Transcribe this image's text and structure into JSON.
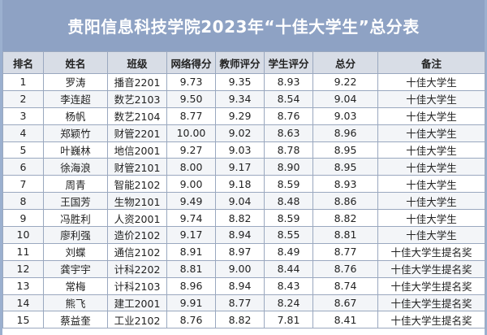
{
  "title": "贵阳信息科技学院2023年“十佳大学生”总分表",
  "columns": [
    "排名",
    "姓名",
    "班级",
    "网络得分",
    "教师评分",
    "学生评分",
    "总分",
    "备注"
  ],
  "rows": [
    [
      "1",
      "罗涛",
      "播音2201",
      "9.73",
      "9.35",
      "8.93",
      "9.22",
      "十佳大学生"
    ],
    [
      "2",
      "李连超",
      "数艺2103",
      "9.50",
      "9.34",
      "8.54",
      "9.04",
      "十佳大学生"
    ],
    [
      "3",
      "杨帆",
      "数艺2104",
      "8.77",
      "9.29",
      "8.76",
      "9.03",
      "十佳大学生"
    ],
    [
      "4",
      "郑颖竹",
      "财管2201",
      "10.00",
      "9.02",
      "8.63",
      "8.96",
      "十佳大学生"
    ],
    [
      "5",
      "叶巍林",
      "地信2001",
      "9.27",
      "9.03",
      "8.78",
      "8.95",
      "十佳大学生"
    ],
    [
      "6",
      "徐海浪",
      "财管2101",
      "8.00",
      "9.17",
      "8.90",
      "8.95",
      "十佳大学生"
    ],
    [
      "7",
      "周青",
      "智能2102",
      "9.00",
      "9.18",
      "8.59",
      "8.93",
      "十佳大学生"
    ],
    [
      "8",
      "王国芳",
      "生物2101",
      "9.49",
      "9.04",
      "8.48",
      "8.86",
      "十佳大学生"
    ],
    [
      "9",
      "冯胜利",
      "人资2001",
      "9.74",
      "8.82",
      "8.59",
      "8.82",
      "十佳大学生"
    ],
    [
      "10",
      "廖利强",
      "造价2102",
      "9.17",
      "8.94",
      "8.55",
      "8.81",
      "十佳大学生"
    ],
    [
      "11",
      "刘蝶",
      "通信2102",
      "8.91",
      "8.97",
      "8.49",
      "8.77",
      "十佳大学生提名奖"
    ],
    [
      "12",
      "龚宇宇",
      "计科2202",
      "8.81",
      "9.00",
      "8.44",
      "8.76",
      "十佳大学生提名奖"
    ],
    [
      "13",
      "常梅",
      "计科2103",
      "8.96",
      "8.94",
      "8.43",
      "8.74",
      "十佳大学生提名奖"
    ],
    [
      "14",
      "熊飞",
      "建工2001",
      "9.91",
      "8.77",
      "8.24",
      "8.67",
      "十佳大学生提名奖"
    ],
    [
      "15",
      "蔡益奎",
      "工业2102",
      "8.76",
      "8.82",
      "7.81",
      "8.41",
      "十佳大学生提名奖"
    ]
  ]
}
